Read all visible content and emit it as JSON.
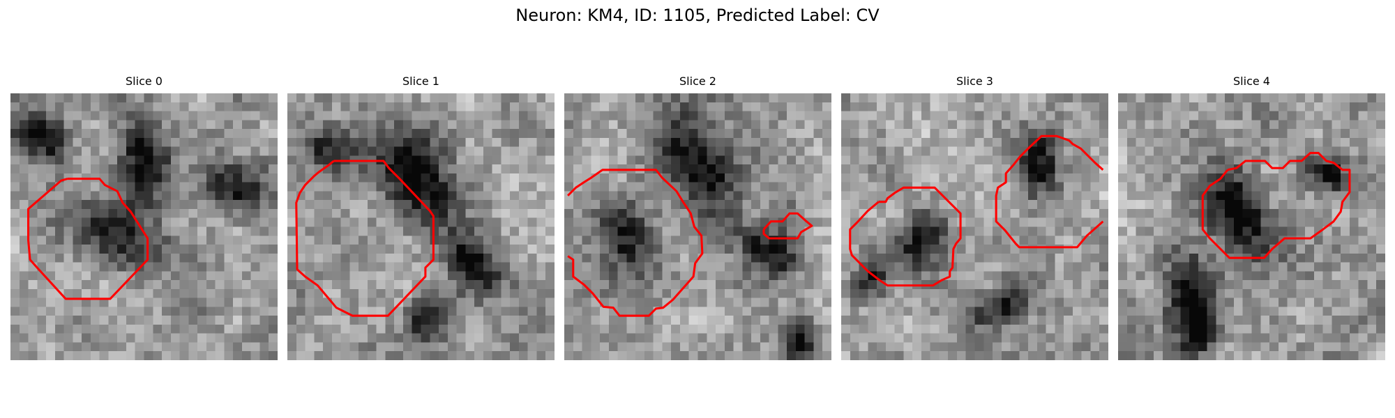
{
  "figure": {
    "title": "Neuron: KM4, ID: 1105, Predicted Label: CV"
  },
  "overlay_color": "#ff0000",
  "slices": [
    {
      "label": "Slice 0",
      "seed": 11,
      "blobs": [
        [
          0.5,
          0.25,
          0.2,
          0.11,
          -90
        ],
        [
          0.4,
          0.55,
          0.22,
          0.12,
          -140
        ],
        [
          0.85,
          0.35,
          0.18,
          0.12,
          30
        ],
        [
          0.1,
          0.15,
          0.14,
          0.1,
          40
        ]
      ]
    },
    {
      "label": "Slice 1",
      "seed": 23,
      "blobs": [
        [
          0.48,
          0.3,
          0.26,
          0.15,
          -120
        ],
        [
          0.52,
          0.85,
          0.14,
          0.08,
          -40
        ],
        [
          0.15,
          0.2,
          0.13,
          0.1,
          30
        ],
        [
          0.7,
          0.65,
          0.14,
          0.1,
          40
        ]
      ]
    },
    {
      "label": "Slice 2",
      "seed": 37,
      "blobs": [
        [
          0.5,
          0.28,
          0.26,
          0.16,
          -120
        ],
        [
          0.22,
          0.55,
          0.18,
          0.12,
          55
        ],
        [
          0.78,
          0.6,
          0.16,
          0.1,
          40
        ],
        [
          0.9,
          0.95,
          0.1,
          0.07,
          -90
        ]
      ]
    },
    {
      "label": "Slice 3",
      "seed": 51,
      "blobs": [
        [
          0.75,
          0.25,
          0.16,
          0.1,
          -90
        ],
        [
          0.3,
          0.55,
          0.14,
          0.1,
          -60
        ],
        [
          0.1,
          0.7,
          0.1,
          0.07,
          -50
        ],
        [
          0.6,
          0.8,
          0.14,
          0.08,
          -40
        ]
      ]
    },
    {
      "label": "Slice 4",
      "seed": 67,
      "blobs": [
        [
          0.45,
          0.45,
          0.22,
          0.13,
          -120
        ],
        [
          0.25,
          0.75,
          0.18,
          0.1,
          -90
        ],
        [
          0.3,
          0.9,
          0.14,
          0.08,
          -70
        ],
        [
          0.8,
          0.3,
          0.1,
          0.07,
          30
        ]
      ]
    }
  ]
}
